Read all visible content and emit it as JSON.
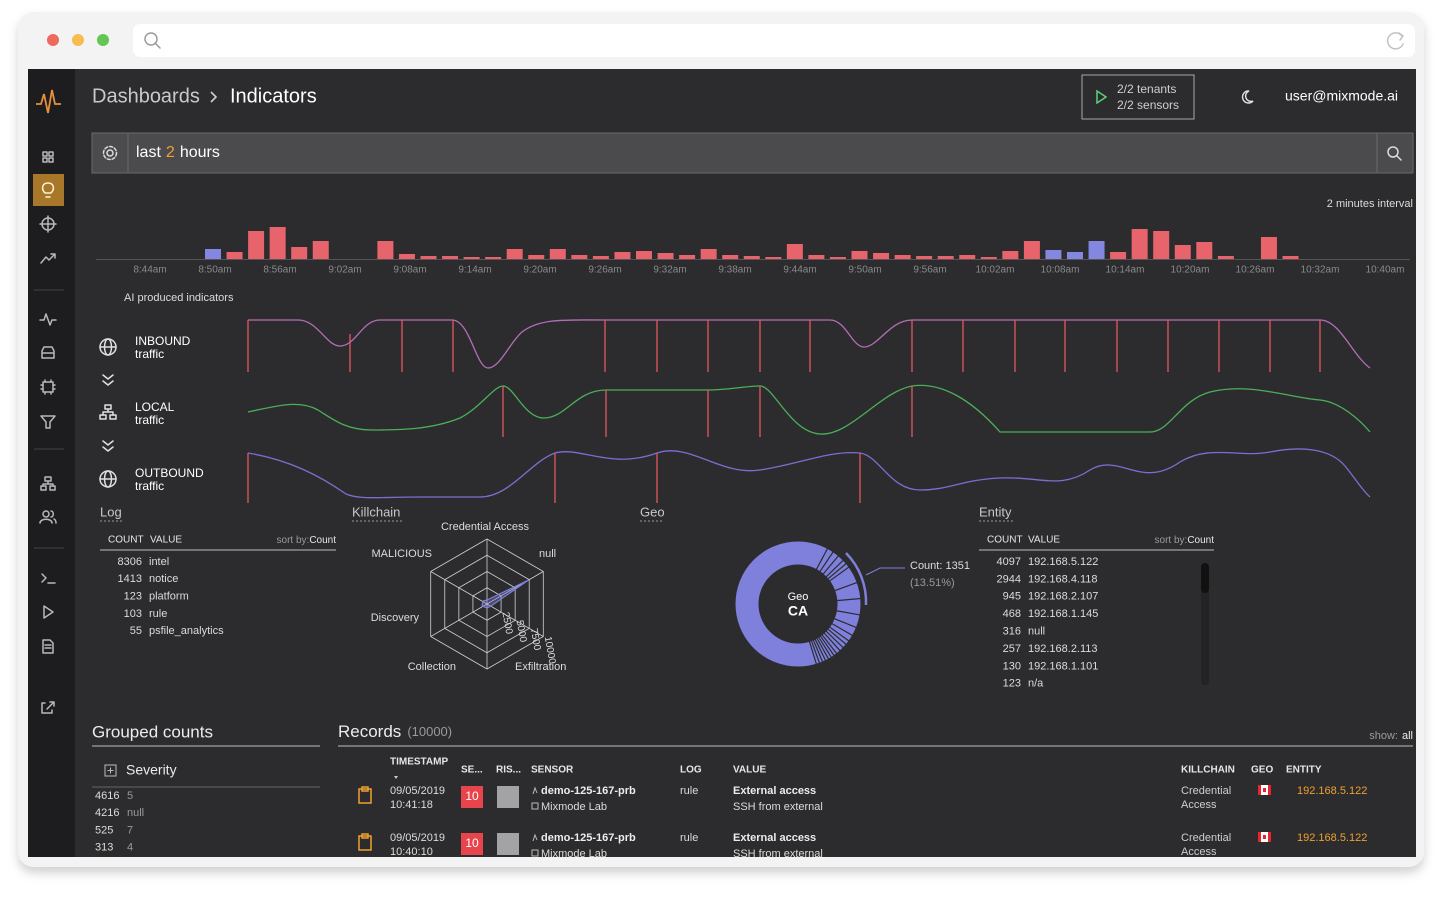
{
  "header": {
    "breadcrumb": [
      "Dashboards",
      "Indicators"
    ],
    "tenants": "2/2 tenants",
    "sensors": "2/2 sensors",
    "user": "user@mixmode.ai"
  },
  "search": {
    "query_prefix": "last",
    "query_number": "2",
    "query_suffix": "hours"
  },
  "histogram": {
    "interval_label": "2 minutes interval",
    "ticks": [
      "8:44am",
      "8:50am",
      "8:56am",
      "9:02am",
      "9:08am",
      "9:14am",
      "9:20am",
      "9:26am",
      "9:32am",
      "9:38am",
      "9:44am",
      "9:50am",
      "9:56am",
      "10:02am",
      "10:08am",
      "10:14am",
      "10:20am",
      "10:26am",
      "10:32am",
      "10:40am"
    ],
    "values": [
      10,
      7,
      28,
      32,
      12,
      18,
      0,
      0,
      18,
      5,
      3,
      3,
      2,
      2,
      10,
      4,
      10,
      4,
      3,
      7,
      8,
      6,
      4,
      10,
      4,
      3,
      2,
      15,
      4,
      2,
      8,
      6,
      4,
      3,
      3,
      4,
      2,
      8,
      18,
      9,
      7,
      18,
      7,
      30,
      28,
      14,
      17,
      3,
      0,
      22,
      3
    ],
    "bar_colors": [
      "#8387e0",
      "#e8646c",
      "#e8646c",
      "#e8646c",
      "#e8646c",
      "#e8646c",
      "#e8646c",
      "#e8646c",
      "#e8646c",
      "#e8646c",
      "#e8646c",
      "#e8646c",
      "#e8646c",
      "#e8646c",
      "#e8646c",
      "#e8646c",
      "#e8646c",
      "#e8646c",
      "#e8646c",
      "#e8646c",
      "#e8646c",
      "#e8646c",
      "#e8646c",
      "#e8646c",
      "#e8646c",
      "#e8646c",
      "#e8646c",
      "#e8646c",
      "#e8646c",
      "#e8646c",
      "#e8646c",
      "#e8646c",
      "#e8646c",
      "#e8646c",
      "#e8646c",
      "#e8646c",
      "#e8646c",
      "#e8646c",
      "#e8646c",
      "#8387e0",
      "#8387e0",
      "#8387e0",
      "#e8646c",
      "#e8646c",
      "#e8646c",
      "#e8646c",
      "#e8646c",
      "#e8646c",
      "#e8646c",
      "#e8646c",
      "#e8646c"
    ]
  },
  "flows": {
    "title": "AI produced indicators",
    "rows": [
      {
        "name": "INBOUND",
        "sub": "traffic"
      },
      {
        "name": "LOCAL",
        "sub": "traffic"
      },
      {
        "name": "OUTBOUND",
        "sub": "traffic"
      }
    ]
  },
  "log": {
    "title": "Log",
    "columns": [
      "COUNT",
      "VALUE"
    ],
    "sort_label": "sort by:",
    "sort_value": "Count",
    "rows": [
      [
        8306,
        "intel"
      ],
      [
        1413,
        "notice"
      ],
      [
        123,
        "platform"
      ],
      [
        103,
        "rule"
      ],
      [
        55,
        "psfile_analytics"
      ]
    ]
  },
  "killchain": {
    "title": "Killchain",
    "axes": [
      "Credential Access",
      "null",
      "Exfiltration",
      "Collection",
      "Discovery",
      "MALICIOUS"
    ],
    "scale": [
      2500,
      5000,
      7500,
      10000
    ]
  },
  "geo": {
    "title": "Geo",
    "center_label": "Geo",
    "center_value": "CA",
    "count_label": "Count: 1351",
    "percent_label": "(13.51%)"
  },
  "entity": {
    "title": "Entity",
    "columns": [
      "COUNT",
      "VALUE"
    ],
    "sort_label": "sort by:",
    "sort_value": "Count",
    "rows": [
      [
        4097,
        "192.168.5.122"
      ],
      [
        2944,
        "192.168.4.118"
      ],
      [
        945,
        "192.168.2.107"
      ],
      [
        468,
        "192.168.1.145"
      ],
      [
        316,
        "null"
      ],
      [
        257,
        "192.168.2.113"
      ],
      [
        130,
        "192.168.1.101"
      ],
      [
        123,
        "n/a"
      ]
    ]
  },
  "grouped": {
    "title": "Grouped counts",
    "group": "Severity",
    "rows": [
      [
        4616,
        "5"
      ],
      [
        4216,
        "null"
      ],
      [
        525,
        "7"
      ],
      [
        313,
        "4"
      ]
    ]
  },
  "records": {
    "title": "Records",
    "total": "(10000)",
    "show_label": "show:",
    "show_value": "all",
    "columns": [
      "TIMESTAMP",
      "SE...",
      "RIS...",
      "SENSOR",
      "LOG",
      "VALUE",
      "KILLCHAIN",
      "GEO",
      "ENTITY"
    ],
    "rows": [
      {
        "date": "09/05/2019",
        "time": "10:41:18",
        "severity": 10,
        "sensor": "demo-125-167-prb",
        "site": "Mixmode Lab",
        "log": "rule",
        "value": "External access",
        "detail": "SSH from external",
        "killchain": "Credential Access",
        "entity": "192.168.5.122"
      },
      {
        "date": "09/05/2019",
        "time": "10:40:10",
        "severity": 10,
        "sensor": "demo-125-167-prb",
        "site": "Mixmode Lab",
        "log": "rule",
        "value": "External access",
        "detail": "SSH from external",
        "killchain": "Credential Access",
        "entity": "192.168.5.122"
      }
    ]
  }
}
